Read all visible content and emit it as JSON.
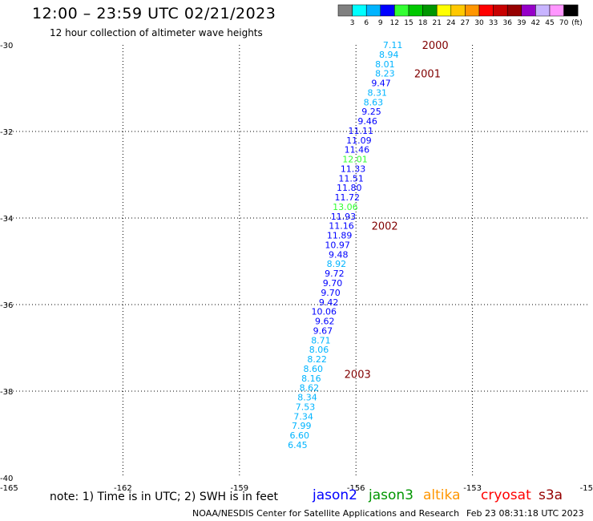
{
  "header": {
    "title": "12:00 – 23:59 UTC 02/21/2023",
    "subtitle": "12 hour collection of altimeter wave heights"
  },
  "legend_scale": {
    "labels": [
      "3",
      "6",
      "9",
      "12",
      "15",
      "18",
      "21",
      "24",
      "27",
      "30",
      "33",
      "36",
      "39",
      "42",
      "45",
      "70"
    ],
    "unit": "(ft)",
    "colors": [
      "#808080",
      "#00ffff",
      "#00b4ff",
      "#0000ff",
      "#32ff32",
      "#00c800",
      "#009600",
      "#ffff00",
      "#ffc800",
      "#ff9600",
      "#ff0000",
      "#c80000",
      "#960000",
      "#9600c8",
      "#c8b4ff",
      "#ff96ff",
      "#000000"
    ]
  },
  "footer": {
    "note": "note: 1) Time is in UTC; 2) SWH is in feet",
    "satellites": [
      {
        "name": "jason2",
        "color": "#0000ff"
      },
      {
        "name": "jason3",
        "color": "#009600"
      },
      {
        "name": "altika",
        "color": "#ff9600"
      },
      {
        "name": "cryosat",
        "color": "#ff0000"
      },
      {
        "name": "s3a",
        "color": "#960000"
      }
    ],
    "credit": "NOAA/NESDIS Center for Satellite Applications and Research",
    "timestamp": "Feb 23 08:31:18 UTC 2023"
  },
  "chart_data": {
    "type": "scatter",
    "xlim": [
      -165,
      -150
    ],
    "ylim": [
      -40,
      -30
    ],
    "x_ticks": [
      "-165",
      "-162",
      "-159",
      "-156",
      "-153",
      "-15"
    ],
    "y_ticks": [
      "-30",
      "-32",
      "-34",
      "-36",
      "-38",
      "-40"
    ],
    "grid": true,
    "points": [
      {
        "lon": -154.8,
        "lat": -30.0,
        "v": "7.11",
        "c": "#00b4ff"
      },
      {
        "lon": -154.9,
        "lat": -30.22,
        "v": "8.94",
        "c": "#00b4ff"
      },
      {
        "lon": -155.0,
        "lat": -30.44,
        "v": "8.01",
        "c": "#00b4ff"
      },
      {
        "lon": -155.0,
        "lat": -30.66,
        "v": "8.23",
        "c": "#00b4ff"
      },
      {
        "lon": -155.1,
        "lat": -30.88,
        "v": "9.47",
        "c": "#0000ff"
      },
      {
        "lon": -155.2,
        "lat": -31.1,
        "v": "8.31",
        "c": "#00b4ff"
      },
      {
        "lon": -155.3,
        "lat": -31.32,
        "v": "8.63",
        "c": "#00b4ff"
      },
      {
        "lon": -155.35,
        "lat": -31.54,
        "v": "9.25",
        "c": "#0000ff"
      },
      {
        "lon": -155.45,
        "lat": -31.76,
        "v": "9.46",
        "c": "#0000ff"
      },
      {
        "lon": -155.55,
        "lat": -31.98,
        "v": "11.11",
        "c": "#0000ff"
      },
      {
        "lon": -155.6,
        "lat": -32.2,
        "v": "11.09",
        "c": "#0000ff"
      },
      {
        "lon": -155.65,
        "lat": -32.42,
        "v": "11.46",
        "c": "#0000ff"
      },
      {
        "lon": -155.7,
        "lat": -32.64,
        "v": "12.01",
        "c": "#32ff32"
      },
      {
        "lon": -155.75,
        "lat": -32.86,
        "v": "11.33",
        "c": "#0000ff"
      },
      {
        "lon": -155.8,
        "lat": -33.08,
        "v": "11.51",
        "c": "#0000ff"
      },
      {
        "lon": -155.85,
        "lat": -33.3,
        "v": "11.80",
        "c": "#0000ff"
      },
      {
        "lon": -155.9,
        "lat": -33.52,
        "v": "11.72",
        "c": "#0000ff"
      },
      {
        "lon": -155.95,
        "lat": -33.74,
        "v": "13.06",
        "c": "#32ff32"
      },
      {
        "lon": -156.0,
        "lat": -33.96,
        "v": "11.93",
        "c": "#0000ff"
      },
      {
        "lon": -156.05,
        "lat": -34.18,
        "v": "11.16",
        "c": "#0000ff"
      },
      {
        "lon": -156.1,
        "lat": -34.4,
        "v": "11.89",
        "c": "#0000ff"
      },
      {
        "lon": -156.15,
        "lat": -34.62,
        "v": "10.97",
        "c": "#0000ff"
      },
      {
        "lon": -156.2,
        "lat": -34.84,
        "v": "9.48",
        "c": "#0000ff"
      },
      {
        "lon": -156.25,
        "lat": -35.06,
        "v": "8.92",
        "c": "#00b4ff"
      },
      {
        "lon": -156.3,
        "lat": -35.28,
        "v": "9.72",
        "c": "#0000ff"
      },
      {
        "lon": -156.35,
        "lat": -35.5,
        "v": "9.70",
        "c": "#0000ff"
      },
      {
        "lon": -156.4,
        "lat": -35.72,
        "v": "9.70",
        "c": "#0000ff"
      },
      {
        "lon": -156.45,
        "lat": -35.94,
        "v": "9.42",
        "c": "#0000ff"
      },
      {
        "lon": -156.5,
        "lat": -36.16,
        "v": "10.06",
        "c": "#0000ff"
      },
      {
        "lon": -156.55,
        "lat": -36.38,
        "v": "9.62",
        "c": "#0000ff"
      },
      {
        "lon": -156.6,
        "lat": -36.6,
        "v": "9.67",
        "c": "#0000ff"
      },
      {
        "lon": -156.65,
        "lat": -36.82,
        "v": "8.71",
        "c": "#00b4ff"
      },
      {
        "lon": -156.7,
        "lat": -37.04,
        "v": "8.06",
        "c": "#00b4ff"
      },
      {
        "lon": -156.75,
        "lat": -37.26,
        "v": "8.22",
        "c": "#00b4ff"
      },
      {
        "lon": -156.85,
        "lat": -37.48,
        "v": "8.60",
        "c": "#00b4ff"
      },
      {
        "lon": -156.9,
        "lat": -37.7,
        "v": "8.16",
        "c": "#00b4ff"
      },
      {
        "lon": -156.95,
        "lat": -37.92,
        "v": "8.62",
        "c": "#00b4ff"
      },
      {
        "lon": -157.0,
        "lat": -38.14,
        "v": "8.34",
        "c": "#00b4ff"
      },
      {
        "lon": -157.05,
        "lat": -38.36,
        "v": "7.53",
        "c": "#00b4ff"
      },
      {
        "lon": -157.1,
        "lat": -38.58,
        "v": "7.34",
        "c": "#00b4ff"
      },
      {
        "lon": -157.15,
        "lat": -38.8,
        "v": "7.99",
        "c": "#00b4ff"
      },
      {
        "lon": -157.2,
        "lat": -39.02,
        "v": "6.60",
        "c": "#00b4ff"
      },
      {
        "lon": -157.25,
        "lat": -39.24,
        "v": "6.45",
        "c": "#00b4ff"
      }
    ],
    "time_marks": [
      {
        "lon": -154.3,
        "lat": -30.0,
        "v": "2000"
      },
      {
        "lon": -154.5,
        "lat": -30.66,
        "v": "2001"
      },
      {
        "lon": -155.6,
        "lat": -34.18,
        "v": "2002"
      },
      {
        "lon": -156.3,
        "lat": -37.6,
        "v": "2003"
      }
    ]
  }
}
